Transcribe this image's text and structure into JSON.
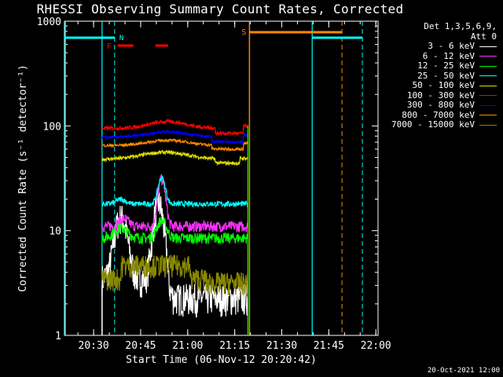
{
  "chart_data": {
    "type": "line",
    "title": "RHESSI Observing Summary Count Rates, Corrected",
    "xlabel": "Start Time (06-Nov-12 20:20:42)",
    "ylabel": "Corrected Count Rate (s⁻¹ detector⁻¹)",
    "yscale": "log",
    "ylim": [
      1,
      1000
    ],
    "xlim_minutes": [
      0,
      100
    ],
    "x_ticks": [
      "20:30",
      "20:45",
      "21:00",
      "21:15",
      "21:30",
      "21:45",
      "22:00"
    ],
    "y_ticks": [
      "1",
      "10",
      "100",
      "1000"
    ],
    "legend_header": [
      "Det 1,3,5,6,9,",
      "Att 0"
    ],
    "series": [
      {
        "name": "3 - 6 keV",
        "color": "#ffffff"
      },
      {
        "name": "6 - 12 keV",
        "color": "#ff33ff"
      },
      {
        "name": "12 - 25 keV",
        "color": "#00ff00"
      },
      {
        "name": "25 - 50 keV",
        "color": "#00ffff"
      },
      {
        "name": "50 - 100 keV",
        "color": "#dddd00"
      },
      {
        "name": "100 - 300 keV",
        "color": "#ff0000"
      },
      {
        "name": "300 - 800 keV",
        "color": "#0000ff"
      },
      {
        "name": "800 - 7000 keV",
        "color": "#ff8800"
      },
      {
        "name": "7000 - 15000 keV",
        "color": "#888800"
      }
    ],
    "annotations": [
      {
        "label": "N",
        "color": "#00ffff"
      },
      {
        "label": "F",
        "color": "#ff0000"
      },
      {
        "label": "S",
        "color": "#ff8800"
      }
    ]
  },
  "footer": "20-Oct-2021 12:00"
}
